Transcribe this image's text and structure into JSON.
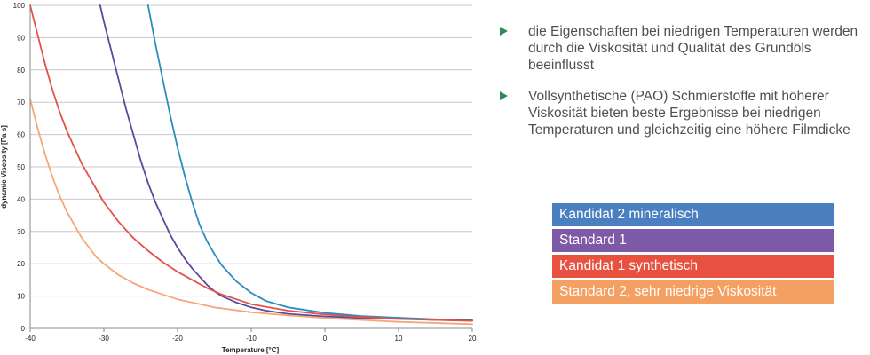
{
  "chart_data": {
    "type": "line",
    "xlabel": "Temperature [°C]",
    "ylabel": "dynamic Viscosity [Pa s]",
    "xlim": [
      -40,
      20
    ],
    "ylim": [
      0,
      100
    ],
    "xticks": [
      -40,
      -30,
      -20,
      -10,
      0,
      10,
      20
    ],
    "yticks": [
      0,
      10,
      20,
      30,
      40,
      50,
      60,
      70,
      80,
      90,
      100
    ],
    "grid": "horizontal",
    "series": [
      {
        "name": "Kandidat 2 mineralisch",
        "color": "#2b8cbe",
        "x": [
          -24,
          -23,
          -22,
          -21,
          -20,
          -19,
          -18,
          -17,
          -16,
          -15,
          -14,
          -12,
          -10,
          -8,
          -5,
          0,
          5,
          10,
          15,
          20
        ],
        "y": [
          100,
          88,
          77,
          66,
          56,
          47,
          39,
          32,
          27,
          23,
          19.5,
          14.5,
          11,
          8.5,
          6.5,
          4.8,
          3.8,
          3.3,
          2.8,
          2.5
        ]
      },
      {
        "name": "Standard 1",
        "color": "#5b4a9b",
        "x": [
          -30.5,
          -30,
          -29,
          -28,
          -27,
          -26,
          -25,
          -24,
          -23,
          -22,
          -21,
          -20,
          -19,
          -18,
          -17,
          -16,
          -15,
          -14,
          -12,
          -10,
          -8,
          -5,
          0,
          5,
          10,
          15,
          20
        ],
        "y": [
          100,
          95,
          86,
          77,
          68,
          60,
          52,
          45,
          39,
          34,
          29,
          25,
          21.5,
          18.5,
          16,
          13.5,
          11.5,
          10,
          8,
          6.5,
          5.5,
          4.5,
          3.7,
          3.2,
          2.9,
          2.6,
          2.4
        ]
      },
      {
        "name": "Kandidat 1 synthetisch",
        "color": "#e0524a",
        "x": [
          -40,
          -39,
          -38,
          -37,
          -36,
          -35,
          -34,
          -33,
          -32,
          -31,
          -30,
          -28,
          -26,
          -24,
          -22,
          -20,
          -18,
          -16,
          -14,
          -12,
          -10,
          -5,
          0,
          5,
          10,
          15,
          20
        ],
        "y": [
          100,
          91,
          82,
          74,
          67,
          61,
          56,
          51,
          47,
          43,
          39,
          33,
          28,
          24,
          20.5,
          17.5,
          15,
          12.5,
          10.5,
          9,
          7.5,
          5.5,
          4.3,
          3.5,
          3,
          2.6,
          2.3
        ]
      },
      {
        "name": "Standard 2, sehr niedrige Viskosität",
        "color": "#f5a77a",
        "x": [
          -40,
          -39,
          -38,
          -37,
          -36,
          -35,
          -34,
          -33,
          -32,
          -31,
          -30,
          -28,
          -26,
          -24,
          -22,
          -20,
          -15,
          -10,
          -5,
          0,
          10,
          20
        ],
        "y": [
          71,
          62,
          54,
          47,
          41,
          36,
          32,
          28,
          25,
          22,
          20,
          16.5,
          14,
          12,
          10.5,
          9,
          6.5,
          5,
          4,
          3.2,
          2,
          1.3
        ]
      }
    ]
  },
  "bullets": [
    "die Eigenschaften bei niedrigen Temperaturen werden durch die Viskosität und Qualität des Grundöls beeinflusst",
    "Vollsynthetische (PAO) Schmierstoffe mit höherer Viskosität bieten beste Ergebnisse bei niedrigen Temperaturen und gleichzeitig eine höhere Filmdicke"
  ],
  "legend": [
    {
      "label": "Kandidat 2 mineralisch",
      "color": "#4a7fc0"
    },
    {
      "label": "Standard 1",
      "color": "#7e5aa6"
    },
    {
      "label": "Kandidat 1 synthetisch",
      "color": "#e8503f"
    },
    {
      "label": "Standard 2, sehr niedrige Viskosität",
      "color": "#f5a063"
    }
  ]
}
